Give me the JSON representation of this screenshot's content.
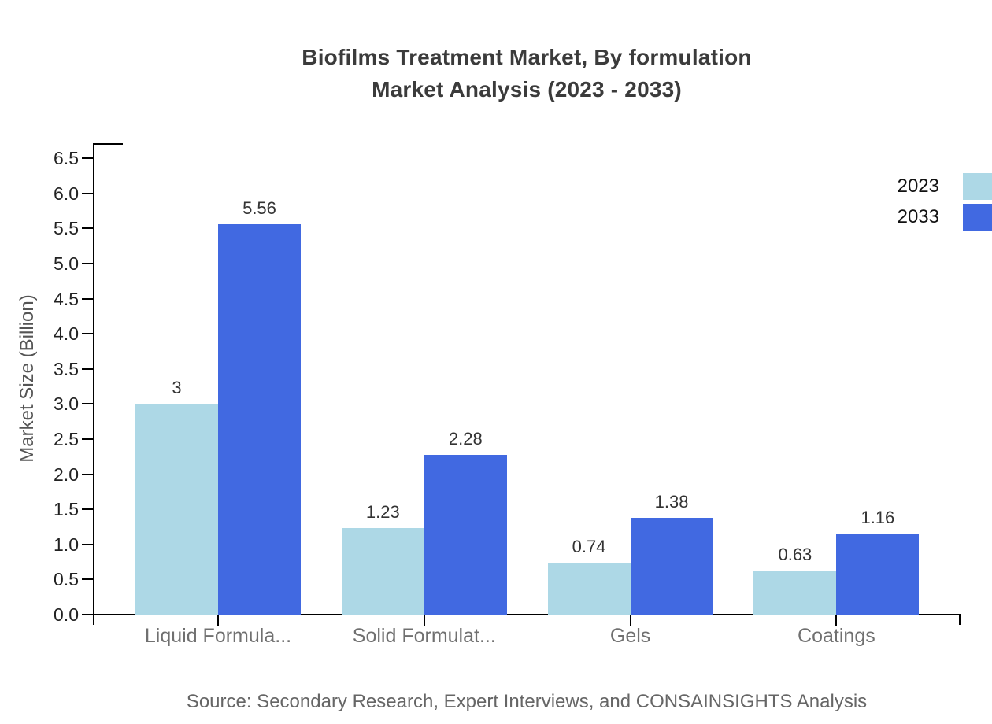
{
  "title": {
    "line1": "Biofilms Treatment Market, By formulation",
    "line2": "Market Analysis (2023 - 2033)"
  },
  "legend": {
    "position": "top-right",
    "items": [
      {
        "label": "2023",
        "color": "#ADD8E6",
        "swatch_icon": "square-swatch-icon"
      },
      {
        "label": "2033",
        "color": "#4169E1",
        "swatch_icon": "square-swatch-icon"
      }
    ]
  },
  "source": "Source: Secondary Research, Expert Interviews, and CONSAINSIGHTS Analysis",
  "chart_data": {
    "type": "bar",
    "title": "Biofilms Treatment Market, By formulation Market Analysis (2023 - 2033)",
    "categories": [
      "Liquid Formula...",
      "Solid Formulat...",
      "Gels",
      "Coatings"
    ],
    "series": [
      {
        "name": "2023",
        "color": "#ADD8E6",
        "values": [
          3,
          1.23,
          0.74,
          0.63
        ]
      },
      {
        "name": "2033",
        "color": "#4169E1",
        "values": [
          5.56,
          2.28,
          1.38,
          1.16
        ]
      }
    ],
    "value_labels": [
      [
        "3",
        "1.23",
        "0.74",
        "0.63"
      ],
      [
        "5.56",
        "2.28",
        "1.38",
        "1.16"
      ]
    ],
    "xlabel": "",
    "ylabel": "Market Size (Billion)",
    "ylim": [
      0,
      6.5
    ],
    "ytick_step": 0.5,
    "ytick_labels": [
      "0.0",
      "0.5",
      "1.0",
      "1.5",
      "2.0",
      "2.5",
      "3.0",
      "3.5",
      "4.0",
      "4.5",
      "5.0",
      "5.5",
      "6.0",
      "6.5"
    ],
    "grid": false,
    "legend_position": "top-right",
    "axis_color": "#000000",
    "text_colors": {
      "title": "#3b3b3b",
      "tick_labels": "#222222",
      "category_labels": "#707070",
      "value_labels": "#333333",
      "source": "#666666"
    }
  }
}
